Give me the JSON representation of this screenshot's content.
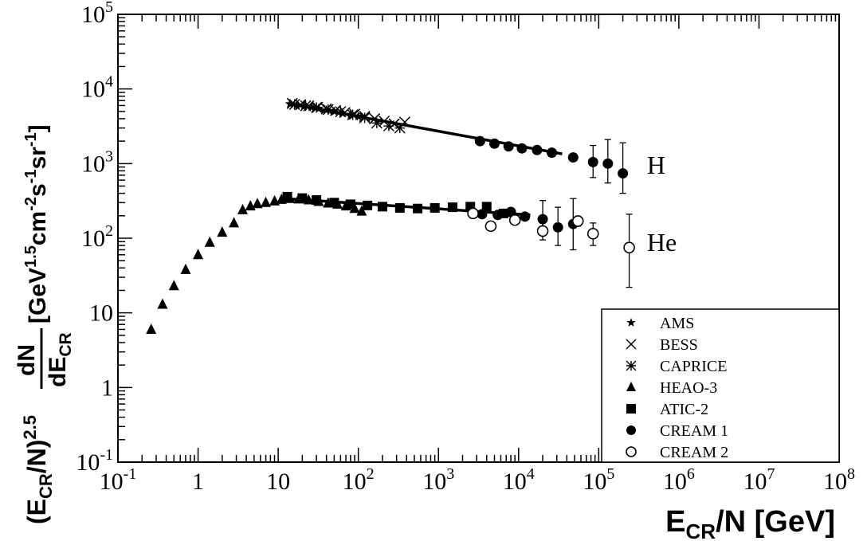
{
  "chart_data": {
    "type": "scatter",
    "x_scale": "log",
    "y_scale": "log",
    "xlim": [
      0.1,
      100000000
    ],
    "ylim": [
      0.1,
      100000
    ],
    "grid": false,
    "legend_position": "bottom-right",
    "xlabel": {
      "main": "E",
      "sub": "CR",
      "rest": "/N [GeV]"
    },
    "ylabel": {
      "p1": "(E",
      "p1sub": "CR",
      "p2": "/N)",
      "p2sup": "2.5",
      "frac_num": "dN",
      "frac_den": "dE",
      "frac_den_sub": "CR",
      "u1": "[GeV",
      "u1sup": "1.5",
      "u2": "cm",
      "u2sup": "-2",
      "u3": "s",
      "u3sup": "-1",
      "u4": "sr",
      "u4sup": "-1",
      "u5": "]"
    },
    "x_ticks": [
      {
        "base": "10",
        "exp": "-1",
        "value": 0.1
      },
      {
        "base": "1",
        "exp": "",
        "value": 1
      },
      {
        "base": "10",
        "exp": "",
        "value": 10
      },
      {
        "base": "10",
        "exp": "2",
        "value": 100
      },
      {
        "base": "10",
        "exp": "3",
        "value": 1000
      },
      {
        "base": "10",
        "exp": "4",
        "value": 10000
      },
      {
        "base": "10",
        "exp": "5",
        "value": 100000
      },
      {
        "base": "10",
        "exp": "6",
        "value": 1000000
      },
      {
        "base": "10",
        "exp": "7",
        "value": 10000000
      },
      {
        "base": "10",
        "exp": "8",
        "value": 100000000
      }
    ],
    "y_ticks": [
      {
        "base": "10",
        "exp": "-1",
        "value": 0.1
      },
      {
        "base": "1",
        "exp": "",
        "value": 1
      },
      {
        "base": "10",
        "exp": "",
        "value": 10
      },
      {
        "base": "10",
        "exp": "2",
        "value": 100
      },
      {
        "base": "10",
        "exp": "3",
        "value": 1000
      },
      {
        "base": "10",
        "exp": "4",
        "value": 10000
      },
      {
        "base": "10",
        "exp": "5",
        "value": 100000
      }
    ],
    "annotations": [
      {
        "text": "H",
        "x": 400000,
        "y": 960
      },
      {
        "text": "He",
        "x": 400000,
        "y": 88
      }
    ],
    "series": [
      {
        "name": "AMS",
        "marker": "star",
        "points": [
          [
            14,
            6300
          ],
          [
            17,
            6100
          ],
          [
            21,
            5900
          ],
          [
            26,
            5700
          ],
          [
            32,
            5450
          ],
          [
            40,
            5200
          ],
          [
            50,
            5000
          ],
          [
            63,
            4750
          ],
          [
            80,
            4550
          ],
          [
            100,
            4300
          ]
        ]
      },
      {
        "name": "BESS",
        "marker": "cross",
        "points": [
          [
            15,
            6400
          ],
          [
            19,
            6150
          ],
          [
            24,
            5950
          ],
          [
            31,
            5700
          ],
          [
            40,
            5400
          ],
          [
            52,
            5150
          ],
          [
            68,
            4850
          ],
          [
            90,
            4600
          ],
          [
            120,
            4300
          ],
          [
            160,
            4000
          ],
          [
            210,
            3700
          ],
          [
            280,
            3400
          ],
          [
            380,
            3600
          ]
        ]
      },
      {
        "name": "CAPRICE",
        "marker": "asterisk",
        "points": [
          [
            16,
            6200
          ],
          [
            22,
            5950
          ],
          [
            30,
            5650
          ],
          [
            42,
            5300
          ],
          [
            60,
            4950
          ],
          [
            85,
            4500
          ],
          [
            120,
            4100
          ],
          [
            170,
            3500
          ],
          [
            240,
            3200
          ],
          [
            330,
            3000
          ]
        ]
      },
      {
        "name": "HEAO-3",
        "marker": "triangle",
        "points": [
          [
            0.26,
            6
          ],
          [
            0.36,
            13
          ],
          [
            0.5,
            23
          ],
          [
            0.7,
            38
          ],
          [
            1.0,
            60
          ],
          [
            1.4,
            88
          ],
          [
            2.0,
            120
          ],
          [
            2.8,
            160
          ],
          [
            3.6,
            240
          ],
          [
            4.5,
            270
          ],
          [
            5.5,
            290
          ],
          [
            7,
            300
          ],
          [
            9,
            315
          ],
          [
            11,
            330
          ],
          [
            14,
            340
          ],
          [
            18,
            335
          ],
          [
            24,
            325
          ],
          [
            32,
            310
          ],
          [
            42,
            295
          ],
          [
            55,
            285
          ],
          [
            70,
            270
          ],
          [
            90,
            250
          ],
          [
            110,
            230
          ]
        ]
      },
      {
        "name": "ATIC-2",
        "marker": "square",
        "points": [
          [
            13,
            360
          ],
          [
            20,
            345
          ],
          [
            30,
            325
          ],
          [
            50,
            300
          ],
          [
            80,
            285
          ],
          [
            130,
            275
          ],
          [
            200,
            265
          ],
          [
            330,
            255
          ],
          [
            550,
            250
          ],
          [
            900,
            255
          ],
          [
            1500,
            260
          ],
          [
            2500,
            265
          ],
          [
            4000,
            265
          ],
          [
            6500,
            215
          ]
        ]
      },
      {
        "name": "CREAM 1",
        "marker": "circle-filled",
        "points": [
          [
            3300,
            2000
          ],
          [
            5000,
            1850
          ],
          [
            7500,
            1700
          ],
          [
            11000,
            1600
          ],
          [
            17000,
            1520
          ],
          [
            26000,
            1400
          ],
          [
            48000,
            1210
          ],
          [
            85000,
            1050
          ],
          [
            130000,
            1000
          ],
          [
            200000,
            740
          ],
          [
            3500,
            210
          ],
          [
            5500,
            205
          ],
          [
            8000,
            225
          ],
          [
            12000,
            195
          ],
          [
            20000,
            180
          ],
          [
            31000,
            140
          ],
          [
            48000,
            155
          ]
        ],
        "error_bars": [
          [
            48000,
            1080,
            1350
          ],
          [
            85000,
            650,
            1750
          ],
          [
            130000,
            550,
            2100
          ],
          [
            200000,
            400,
            1900
          ],
          [
            20000,
            110,
            320
          ],
          [
            31000,
            80,
            260
          ],
          [
            48000,
            70,
            340
          ]
        ]
      },
      {
        "name": "CREAM 2",
        "marker": "circle-open",
        "points": [
          [
            2700,
            215
          ],
          [
            4500,
            145
          ],
          [
            9000,
            175
          ],
          [
            20000,
            125
          ],
          [
            55000,
            170
          ],
          [
            85000,
            115
          ],
          [
            240000,
            75
          ]
        ],
        "error_bars": [
          [
            20000,
            95,
            160
          ],
          [
            55000,
            145,
            195
          ],
          [
            85000,
            80,
            160
          ],
          [
            240000,
            22,
            210
          ]
        ]
      }
    ],
    "fit_lines": [
      {
        "name": "H fit",
        "points": [
          [
            15,
            6200
          ],
          [
            35000,
            1350
          ]
        ]
      },
      {
        "name": "He fit",
        "points": [
          [
            12,
            340
          ],
          [
            14000,
            205
          ]
        ]
      }
    ]
  }
}
